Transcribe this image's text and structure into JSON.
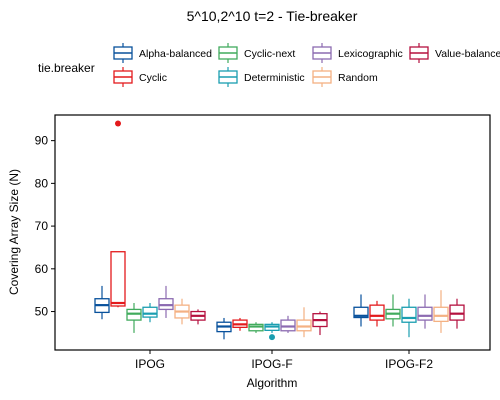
{
  "chart_data": {
    "type": "boxplot",
    "title": "5^10,2^10 t=2 - Tie-breaker",
    "xlabel": "Algorithm",
    "ylabel": "Covering Array Size (N)",
    "ylim": [
      41,
      96
    ],
    "yticks": [
      50,
      60,
      70,
      80,
      90
    ],
    "categories": [
      "IPOG",
      "IPOG-F",
      "IPOG-F2"
    ],
    "legend": {
      "title": "tie.breaker",
      "position": "top",
      "rows": [
        [
          "Alpha-balanced",
          "Cyclic-next",
          "Lexicographic",
          "Value-balanced"
        ],
        [
          "Cyclic",
          "Deterministic",
          "Random"
        ]
      ]
    },
    "series": [
      {
        "name": "Alpha-balanced",
        "color": "#08519c",
        "boxes": [
          {
            "min": 48.2,
            "q1": 49.8,
            "median": 51.5,
            "q3": 53,
            "max": 56,
            "outliers": []
          },
          {
            "min": 43.5,
            "q1": 45.3,
            "median": 46.5,
            "q3": 47.5,
            "max": 48.5,
            "outliers": []
          },
          {
            "min": 46.5,
            "q1": 48.6,
            "median": 49,
            "q3": 51,
            "max": 54,
            "outliers": []
          }
        ]
      },
      {
        "name": "Cyclic",
        "color": "#e31a1c",
        "boxes": [
          {
            "min": 51,
            "q1": 51.3,
            "median": 52,
            "q3": 64,
            "max": 64,
            "outliers": [
              94
            ]
          },
          {
            "min": 45.5,
            "q1": 46.3,
            "median": 47,
            "q3": 48,
            "max": 48.5,
            "outliers": []
          },
          {
            "min": 46.5,
            "q1": 48,
            "median": 49,
            "q3": 51.5,
            "max": 52.5,
            "outliers": []
          }
        ]
      },
      {
        "name": "Cyclic-next",
        "color": "#41ab5d",
        "boxes": [
          {
            "min": 45,
            "q1": 48,
            "median": 49.5,
            "q3": 50.5,
            "max": 52,
            "outliers": []
          },
          {
            "min": 45,
            "q1": 45.5,
            "median": 46.5,
            "q3": 47,
            "max": 47.5,
            "outliers": []
          },
          {
            "min": 46.5,
            "q1": 48.3,
            "median": 49.5,
            "q3": 50.5,
            "max": 54,
            "outliers": []
          }
        ]
      },
      {
        "name": "Deterministic",
        "color": "#1a9eb0",
        "boxes": [
          {
            "min": 47.5,
            "q1": 48.7,
            "median": 49.5,
            "q3": 51,
            "max": 52,
            "outliers": []
          },
          {
            "min": 45,
            "q1": 45.6,
            "median": 46.5,
            "q3": 47,
            "max": 47.5,
            "outliers": [
              44
            ]
          },
          {
            "min": 44,
            "q1": 47.5,
            "median": 48.5,
            "q3": 51,
            "max": 53,
            "outliers": []
          }
        ]
      },
      {
        "name": "Lexicographic",
        "color": "#8c6bb1",
        "boxes": [
          {
            "min": 48.5,
            "q1": 50.5,
            "median": 51.5,
            "q3": 53,
            "max": 56,
            "outliers": []
          },
          {
            "min": 45,
            "q1": 45.5,
            "median": 46.5,
            "q3": 48,
            "max": 49,
            "outliers": []
          },
          {
            "min": 46,
            "q1": 48,
            "median": 49,
            "q3": 51,
            "max": 54,
            "outliers": []
          }
        ]
      },
      {
        "name": "Random",
        "color": "#f4b183",
        "boxes": [
          {
            "min": 47,
            "q1": 48.5,
            "median": 50,
            "q3": 51.5,
            "max": 53,
            "outliers": []
          },
          {
            "min": 44,
            "q1": 45.5,
            "median": 46.5,
            "q3": 48,
            "max": 51,
            "outliers": []
          },
          {
            "min": 45,
            "q1": 47.7,
            "median": 49,
            "q3": 51,
            "max": 55,
            "outliers": []
          }
        ]
      },
      {
        "name": "Value-balanced",
        "color": "#b5113f",
        "boxes": [
          {
            "min": 47,
            "q1": 48,
            "median": 49,
            "q3": 50,
            "max": 50.5,
            "outliers": []
          },
          {
            "min": 44.5,
            "q1": 46.5,
            "median": 48,
            "q3": 49.5,
            "max": 50,
            "outliers": []
          },
          {
            "min": 46,
            "q1": 48,
            "median": 49.5,
            "q3": 51.5,
            "max": 53,
            "outliers": []
          }
        ]
      }
    ]
  }
}
